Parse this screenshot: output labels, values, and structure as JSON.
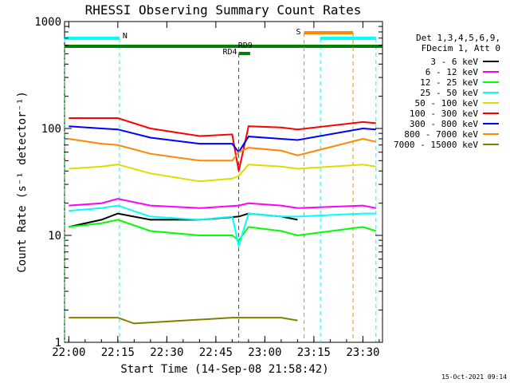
{
  "chart_data": {
    "type": "line",
    "title": "RHESSI Observing Summary Count Rates",
    "xlabel": "Start Time (14-Sep-08 21:58:42)",
    "ylabel": "Count Rate (s⁻¹ detector⁻¹)",
    "yscale": "log",
    "ylim": [
      1,
      1000
    ],
    "xlim": [
      "21:58:42",
      "23:36:00"
    ],
    "x_ticks": [
      "22:00",
      "22:15",
      "22:30",
      "22:45",
      "23:00",
      "23:15",
      "23:30"
    ],
    "y_ticks": [
      "1",
      "10",
      "100",
      "1000"
    ],
    "footer_date": "15-Oct-2021 09:14",
    "legend": {
      "header": [
        "Det 1,3,4,5,6,9,",
        "FDecim 1, Att 0"
      ],
      "placement": "right"
    },
    "series": [
      {
        "name": "3 - 6 keV",
        "color": "#000000",
        "x": [
          "22:00",
          "22:10",
          "22:15",
          "22:25",
          "22:40",
          "22:52",
          "22:55",
          "23:05",
          "23:10"
        ],
        "values": [
          12,
          14,
          16,
          14,
          14,
          15,
          16,
          15,
          14
        ]
      },
      {
        "name": "6 - 12 keV",
        "color": "#ff00ff",
        "x": [
          "22:00",
          "22:10",
          "22:15",
          "22:25",
          "22:40",
          "22:52",
          "22:55",
          "23:05",
          "23:10",
          "23:30",
          "23:34"
        ],
        "values": [
          19,
          20,
          22,
          19,
          18,
          19,
          20,
          19,
          18,
          19,
          18
        ]
      },
      {
        "name": "12 - 25 keV",
        "color": "#00ff00",
        "x": [
          "22:00",
          "22:10",
          "22:15",
          "22:25",
          "22:40",
          "22:50",
          "22:52",
          "22:55",
          "23:05",
          "23:10",
          "23:30",
          "23:34"
        ],
        "values": [
          12,
          13,
          14,
          11,
          10,
          10,
          9,
          12,
          11,
          10,
          12,
          11
        ]
      },
      {
        "name": "25 - 50 keV",
        "color": "#00ffff",
        "x": [
          "22:00",
          "22:10",
          "22:15",
          "22:25",
          "22:40",
          "22:50",
          "22:52",
          "22:55",
          "23:05",
          "23:10",
          "23:30",
          "23:34"
        ],
        "values": [
          17,
          18,
          19,
          15,
          14,
          15,
          8,
          16,
          15,
          15,
          16,
          16
        ]
      },
      {
        "name": "50 - 100 keV",
        "color": "#dddd00",
        "x": [
          "22:00",
          "22:10",
          "22:15",
          "22:25",
          "22:40",
          "22:50",
          "22:52",
          "22:55",
          "23:05",
          "23:10",
          "23:30",
          "23:34"
        ],
        "values": [
          42,
          44,
          46,
          38,
          32,
          34,
          36,
          46,
          44,
          42,
          46,
          44
        ]
      },
      {
        "name": "100 - 300 keV",
        "color": "#ff0000",
        "x": [
          "22:00",
          "22:10",
          "22:15",
          "22:25",
          "22:40",
          "22:50",
          "22:52",
          "22:55",
          "23:05",
          "23:10",
          "23:30",
          "23:34"
        ],
        "values": [
          125,
          125,
          125,
          100,
          85,
          88,
          40,
          105,
          102,
          98,
          115,
          112
        ]
      },
      {
        "name": "300 - 800 keV",
        "color": "#0000ff",
        "x": [
          "22:00",
          "22:10",
          "22:15",
          "22:25",
          "22:40",
          "22:50",
          "22:52",
          "22:55",
          "23:05",
          "23:10",
          "23:30",
          "23:34"
        ],
        "values": [
          105,
          100,
          98,
          82,
          72,
          72,
          60,
          84,
          80,
          78,
          100,
          98
        ]
      },
      {
        "name": "800 - 7000 keV",
        "color": "#ff8800",
        "x": [
          "22:00",
          "22:10",
          "22:15",
          "22:25",
          "22:40",
          "22:50",
          "22:52",
          "22:55",
          "23:05",
          "23:10",
          "23:30",
          "23:34"
        ],
        "values": [
          80,
          72,
          70,
          58,
          50,
          50,
          60,
          66,
          62,
          56,
          80,
          75
        ]
      },
      {
        "name": "7000 - 15000 keV",
        "color": "#808000",
        "x": [
          "22:00",
          "22:10",
          "22:15",
          "22:20",
          "22:50",
          "22:55",
          "23:00",
          "23:05",
          "23:10"
        ],
        "values": [
          1.7,
          1.7,
          1.7,
          1.5,
          1.7,
          1.7,
          1.7,
          1.7,
          1.6
        ]
      }
    ],
    "annotations": [
      {
        "label": "N",
        "color": "#00ffff",
        "segments": [
          [
            "21:58:42",
            "22:15:30"
          ],
          [
            "23:17:00",
            "23:34:00"
          ]
        ]
      },
      {
        "label": "RD9",
        "color": "#008000",
        "segments": [
          [
            "21:58:42",
            "23:36:00"
          ]
        ]
      },
      {
        "label": "RD4",
        "color": "#008000",
        "segments": [
          [
            "22:52:00",
            "22:55:30"
          ]
        ]
      },
      {
        "label": "S",
        "color": "#ff8800",
        "segments": [
          [
            "23:12:00",
            "23:27:00"
          ]
        ]
      }
    ]
  }
}
